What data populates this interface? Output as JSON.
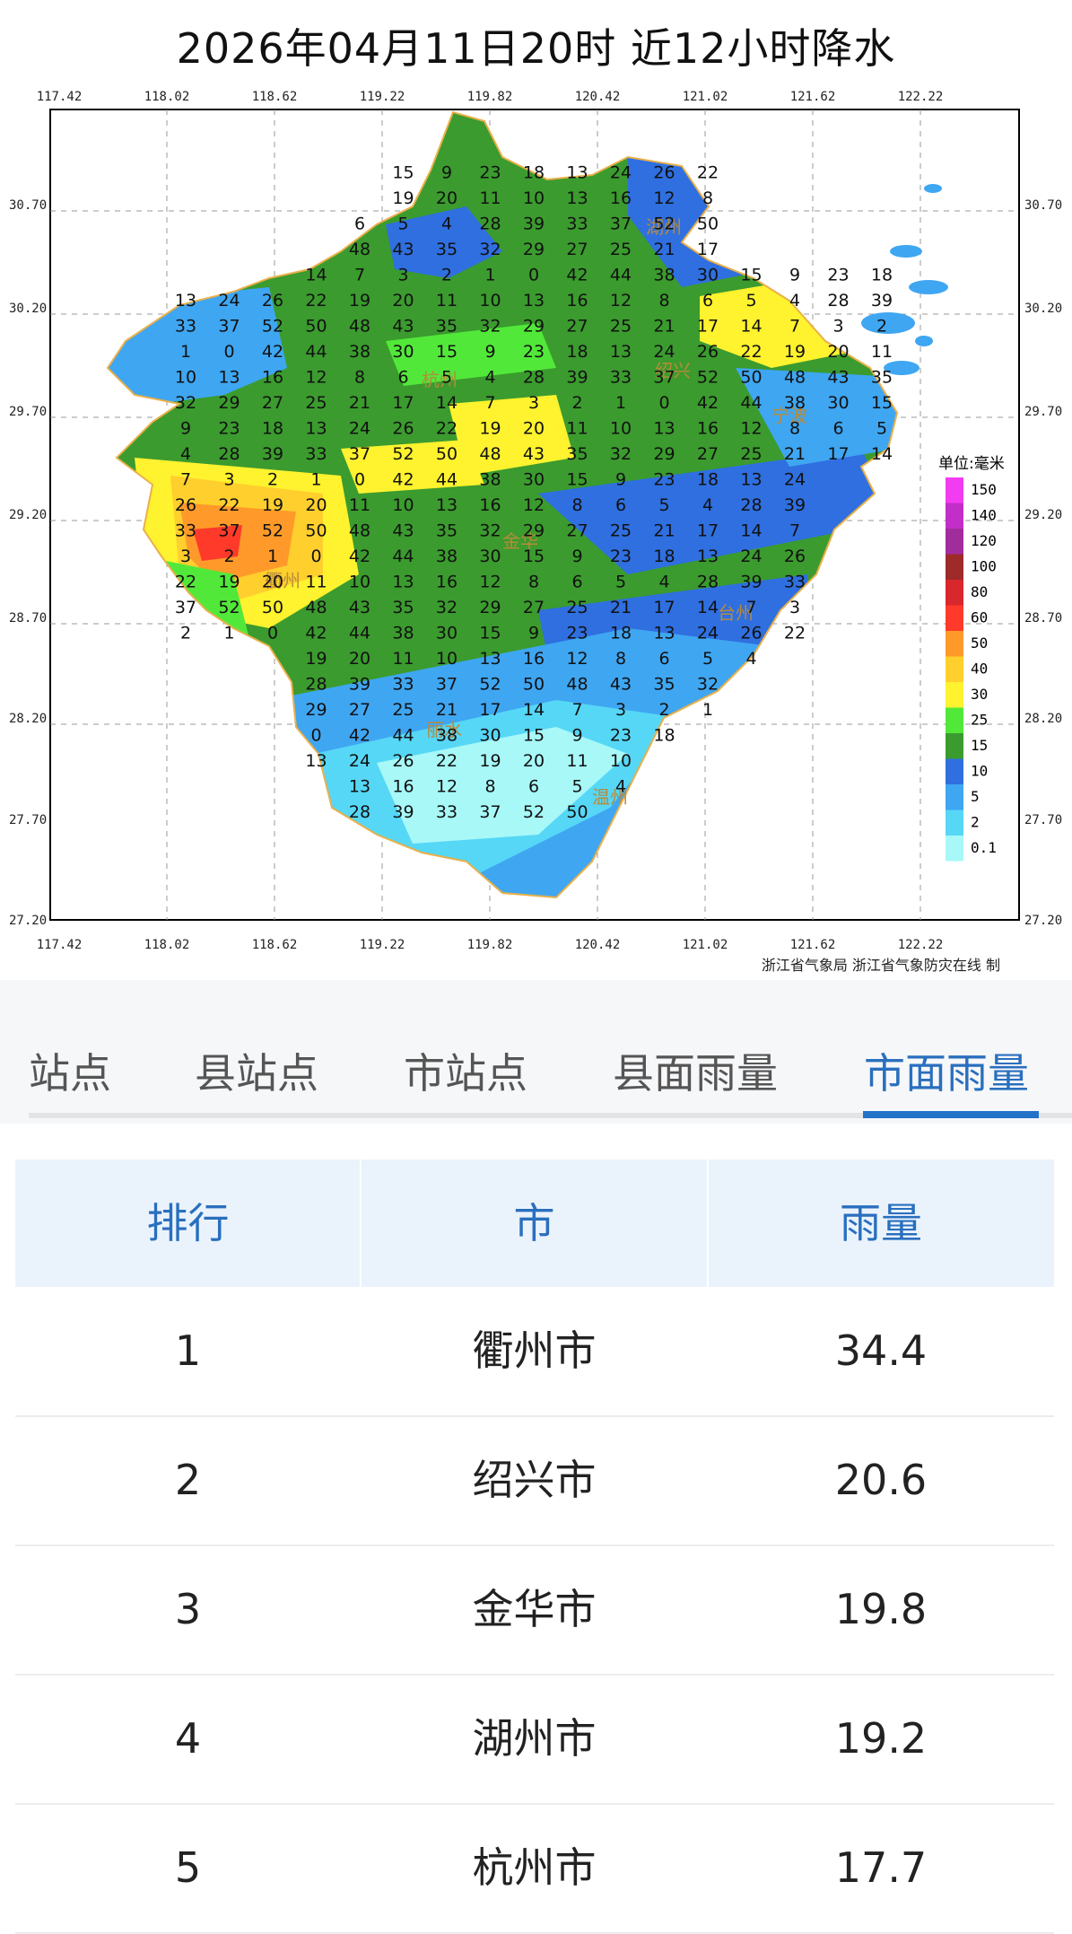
{
  "map": {
    "title": "2026年04月11日20时  近12小时降水",
    "lon_ticks": [
      "117.42",
      "118.02",
      "118.62",
      "119.22",
      "119.82",
      "120.42",
      "121.02",
      "121.62",
      "122.22"
    ],
    "lat_ticks": [
      "30.70",
      "30.20",
      "29.70",
      "29.20",
      "28.70",
      "28.20",
      "27.70",
      "27.20"
    ],
    "legend": {
      "unit": "单位:毫米",
      "items": [
        {
          "label": "150",
          "color": "#f23cf2"
        },
        {
          "label": "140",
          "color": "#c12fc8"
        },
        {
          "label": "120",
          "color": "#a12d9c"
        },
        {
          "label": "100",
          "color": "#9e2a2a"
        },
        {
          "label": "80",
          "color": "#d8282d"
        },
        {
          "label": "60",
          "color": "#ff3a2a"
        },
        {
          "label": "50",
          "color": "#ff9a2a"
        },
        {
          "label": "40",
          "color": "#ffcf2d"
        },
        {
          "label": "30",
          "color": "#fff22e"
        },
        {
          "label": "25",
          "color": "#52e83a"
        },
        {
          "label": "15",
          "color": "#3b9b2e"
        },
        {
          "label": "10",
          "color": "#2f6fe0"
        },
        {
          "label": "5",
          "color": "#3fa6f2"
        },
        {
          "label": "2",
          "color": "#56d7f6"
        },
        {
          "label": "0.1",
          "color": "#a8f8f8"
        }
      ]
    },
    "city_labels": [
      "杭州",
      "衢州",
      "金华",
      "丽水",
      "温州",
      "台州",
      "宁波",
      "绍兴",
      "湖州"
    ],
    "station_values": [
      "15",
      "9",
      "23",
      "18",
      "13",
      "24",
      "26",
      "22",
      "19",
      "20",
      "11",
      "10",
      "13",
      "16",
      "12",
      "8",
      "6",
      "5",
      "4",
      "28",
      "39",
      "33",
      "37",
      "52",
      "50",
      "48",
      "43",
      "35",
      "32",
      "29",
      "27",
      "25",
      "21",
      "17",
      "14",
      "7",
      "3",
      "2",
      "1",
      "0",
      "42",
      "44",
      "38",
      "30"
    ],
    "credit": "浙江省气象局 浙江省气象防灾在线 制"
  },
  "tabs": [
    {
      "label": "站点",
      "active": false
    },
    {
      "label": "县站点",
      "active": false
    },
    {
      "label": "市站点",
      "active": false
    },
    {
      "label": "县面雨量",
      "active": false
    },
    {
      "label": "市面雨量",
      "active": true
    }
  ],
  "table": {
    "headers": [
      "排行",
      "市",
      "雨量"
    ],
    "rows": [
      {
        "rank": "1",
        "city": "衢州市",
        "rain": "34.4"
      },
      {
        "rank": "2",
        "city": "绍兴市",
        "rain": "20.6"
      },
      {
        "rank": "3",
        "city": "金华市",
        "rain": "19.8"
      },
      {
        "rank": "4",
        "city": "湖州市",
        "rain": "19.2"
      },
      {
        "rank": "5",
        "city": "杭州市",
        "rain": "17.7"
      }
    ]
  },
  "colors": {
    "accent": "#2472c8",
    "header_bg": "#eaf3fc"
  }
}
